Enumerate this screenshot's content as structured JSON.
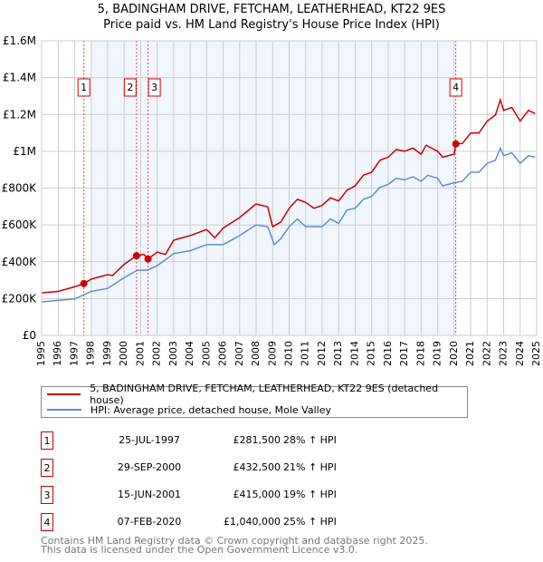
{
  "chart_data": {
    "type": "line",
    "title": "5, BADINGHAM DRIVE, FETCHAM, LEATHERHEAD, KT22 9ES",
    "subtitle": "Price paid vs. HM Land Registry's House Price Index (HPI)",
    "xlim": [
      1995,
      2025
    ],
    "ylim": [
      0,
      1600000
    ],
    "grid": true,
    "y_ticks": [
      {
        "v": 0,
        "label": "£0"
      },
      {
        "v": 200000,
        "label": "£200K"
      },
      {
        "v": 400000,
        "label": "£400K"
      },
      {
        "v": 600000,
        "label": "£600K"
      },
      {
        "v": 800000,
        "label": "£800K"
      },
      {
        "v": 1000000,
        "label": "£1M"
      },
      {
        "v": 1200000,
        "label": "£1.2M"
      },
      {
        "v": 1400000,
        "label": "£1.4M"
      },
      {
        "v": 1600000,
        "label": "£1.6M"
      }
    ],
    "x_ticks": [
      "1995",
      "1996",
      "1997",
      "1998",
      "1999",
      "2000",
      "2001",
      "2002",
      "2003",
      "2004",
      "2005",
      "2006",
      "2007",
      "2008",
      "2009",
      "2010",
      "2011",
      "2012",
      "2013",
      "2014",
      "2015",
      "2016",
      "2017",
      "2018",
      "2019",
      "2020",
      "2021",
      "2022",
      "2023",
      "2024",
      "2025"
    ],
    "shaded_range": [
      1998,
      2020.1
    ],
    "series": [
      {
        "name": "5, BADINGHAM DRIVE, FETCHAM, LEATHERHEAD, KT22 9ES (detached house)",
        "color": "#cc0000",
        "x": [
          1995,
          1996,
          1997,
          1997.56,
          1998,
          1999,
          1999.3,
          2000,
          2000.75,
          2001.2,
          2001.45,
          2002,
          2002.5,
          2003,
          2004,
          2005,
          2005.5,
          2006,
          2007,
          2008,
          2008.7,
          2009,
          2009.5,
          2010,
          2010.5,
          2011,
          2011.5,
          2012,
          2012.5,
          2013,
          2013.5,
          2014,
          2014.5,
          2015,
          2015.5,
          2016,
          2016.5,
          2017,
          2017.5,
          2018,
          2018.3,
          2019,
          2019.3,
          2020,
          2020.1,
          2020.5,
          2021,
          2021.5,
          2022,
          2022.5,
          2022.8,
          2023,
          2023.5,
          2024,
          2024.5,
          2024.9
        ],
        "y": [
          231000,
          239000,
          264000,
          281500,
          305000,
          330000,
          325000,
          386000,
          432500,
          440000,
          415000,
          452000,
          440000,
          517000,
          542000,
          575000,
          530000,
          583000,
          640000,
          714000,
          698000,
          590000,
          616000,
          690000,
          739000,
          722000,
          690000,
          706000,
          747000,
          730000,
          788000,
          812000,
          870000,
          886000,
          951000,
          968000,
          1009000,
          1000000,
          1017000,
          984000,
          1033000,
          1000000,
          968000,
          984000,
          1040000,
          1042000,
          1099000,
          1099000,
          1164000,
          1197000,
          1279000,
          1222000,
          1238000,
          1164000,
          1222000,
          1205000
        ]
      },
      {
        "name": "HPI: Average price, detached house, Mole Valley",
        "color": "#5b8fd0",
        "x": [
          1995,
          1996,
          1997,
          1998,
          1999,
          2000,
          2000.8,
          2001.4,
          2002,
          2003,
          2004,
          2005,
          2006,
          2007,
          2008,
          2008.7,
          2009.1,
          2009.5,
          2010,
          2010.5,
          2011,
          2012,
          2012.5,
          2013,
          2013.5,
          2014,
          2014.5,
          2015,
          2015.5,
          2016,
          2016.5,
          2017,
          2017.5,
          2018,
          2018.4,
          2019,
          2019.3,
          2020,
          2020.5,
          2021,
          2021.5,
          2022,
          2022.5,
          2022.8,
          2023,
          2023.5,
          2024,
          2024.5,
          2024.9
        ],
        "y": [
          182000,
          190000,
          198000,
          239000,
          255000,
          313000,
          354000,
          354000,
          378000,
          444000,
          460000,
          493000,
          493000,
          542000,
          600000,
          591000,
          493000,
          526000,
          591000,
          632000,
          591000,
          591000,
          632000,
          608000,
          681000,
          690000,
          739000,
          755000,
          804000,
          820000,
          853000,
          845000,
          861000,
          837000,
          870000,
          853000,
          812000,
          829000,
          837000,
          886000,
          886000,
          935000,
          951000,
          1017000,
          976000,
          992000,
          935000,
          976000,
          968000
        ]
      }
    ],
    "sales": [
      {
        "n": "1",
        "x": 1997.56,
        "y": 281500,
        "date": "25-JUL-1997",
        "price": "£281,500",
        "hpi": "28% ↑ HPI"
      },
      {
        "n": "2",
        "x": 2000.75,
        "y": 432500,
        "date": "29-SEP-2000",
        "price": "£432,500",
        "hpi": "21% ↑ HPI"
      },
      {
        "n": "3",
        "x": 2001.45,
        "y": 415000,
        "date": "15-JUN-2001",
        "price": "£415,000",
        "hpi": "19% ↑ HPI"
      },
      {
        "n": "4",
        "x": 2020.1,
        "y": 1040000,
        "date": "07-FEB-2020",
        "price": "£1,040,000",
        "hpi": "25% ↑ HPI"
      }
    ]
  },
  "footer": {
    "line1": "Contains HM Land Registry data © Crown copyright and database right 2025.",
    "line2": "This data is licensed under the Open Government Licence v3.0."
  }
}
